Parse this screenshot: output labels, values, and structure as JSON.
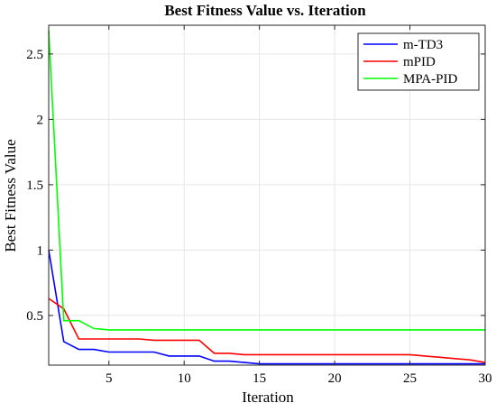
{
  "chart_data": {
    "type": "line",
    "title": "Best Fitness Value vs. Iteration",
    "xlabel": "Iteration",
    "ylabel": "Best Fitness Value",
    "xlim": [
      1,
      30
    ],
    "ylim": [
      0.12,
      2.72
    ],
    "xticks": [
      5,
      10,
      15,
      20,
      25,
      30
    ],
    "yticks": [
      0.5,
      1,
      1.5,
      2,
      2.5
    ],
    "xtick_labels": [
      "5",
      "10",
      "15",
      "20",
      "25",
      "30"
    ],
    "ytick_labels": [
      "0.5",
      "1",
      "1.5",
      "2",
      "2.5"
    ],
    "grid": true,
    "legend_position": "top-right",
    "x": [
      1,
      2,
      3,
      4,
      5,
      6,
      7,
      8,
      9,
      10,
      11,
      12,
      13,
      14,
      15,
      16,
      17,
      18,
      19,
      20,
      21,
      22,
      23,
      24,
      25,
      26,
      27,
      28,
      29,
      30
    ],
    "series": [
      {
        "name": "m-TD3",
        "color": "#0000ff",
        "values": [
          1.0,
          0.3,
          0.24,
          0.24,
          0.22,
          0.22,
          0.22,
          0.22,
          0.19,
          0.19,
          0.19,
          0.15,
          0.15,
          0.14,
          0.13,
          0.13,
          0.13,
          0.13,
          0.13,
          0.13,
          0.13,
          0.13,
          0.13,
          0.13,
          0.13,
          0.13,
          0.13,
          0.13,
          0.13,
          0.13
        ]
      },
      {
        "name": "mPID",
        "color": "#ff0000",
        "values": [
          0.63,
          0.55,
          0.32,
          0.32,
          0.32,
          0.32,
          0.32,
          0.31,
          0.31,
          0.31,
          0.31,
          0.21,
          0.21,
          0.2,
          0.2,
          0.2,
          0.2,
          0.2,
          0.2,
          0.2,
          0.2,
          0.2,
          0.2,
          0.2,
          0.2,
          0.19,
          0.18,
          0.17,
          0.16,
          0.14
        ]
      },
      {
        "name": "MPA-PID",
        "color": "#00ff00",
        "values": [
          2.68,
          0.46,
          0.46,
          0.4,
          0.39,
          0.39,
          0.39,
          0.39,
          0.39,
          0.39,
          0.39,
          0.39,
          0.39,
          0.39,
          0.39,
          0.39,
          0.39,
          0.39,
          0.39,
          0.39,
          0.39,
          0.39,
          0.39,
          0.39,
          0.39,
          0.39,
          0.39,
          0.39,
          0.39,
          0.39
        ]
      }
    ]
  }
}
